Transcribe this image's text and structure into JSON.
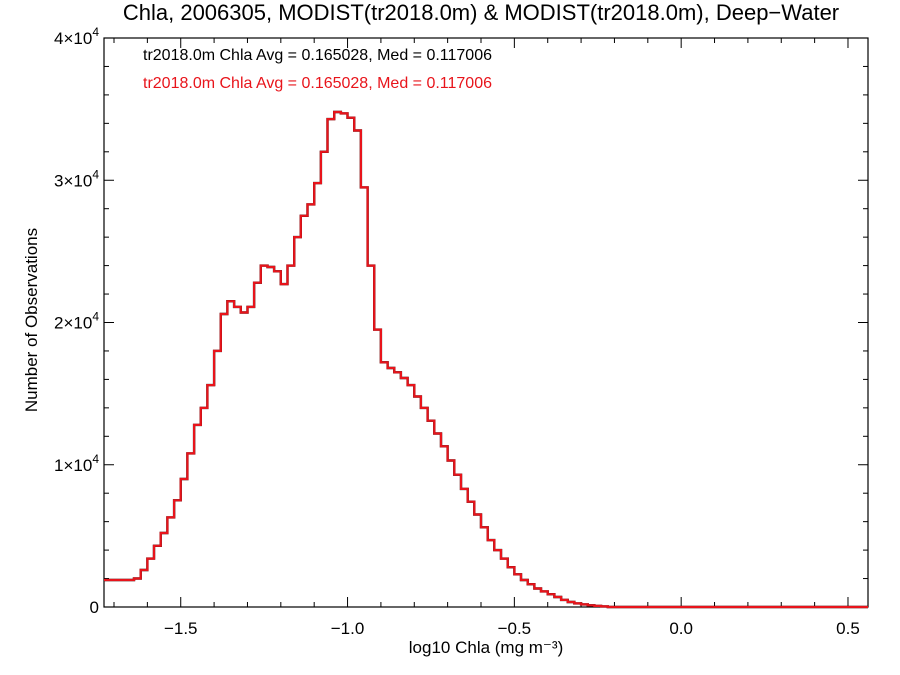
{
  "chart_data": {
    "type": "line",
    "style": "step",
    "title": "Chla, 2006305, MODIST(tr2018.0m) & MODIST(tr2018.0m), Deep−Water",
    "xlabel": "log10 Chla (mg m⁻³)",
    "ylabel": "Number of Observations",
    "xlim": [
      -1.73,
      0.56
    ],
    "ylim": [
      0,
      40000
    ],
    "x_ticks": [
      {
        "value": -1.5,
        "label": "−1.5"
      },
      {
        "value": -1.0,
        "label": "−1.0"
      },
      {
        "value": -0.5,
        "label": "−0.5"
      },
      {
        "value": 0.0,
        "label": "0.0"
      },
      {
        "value": 0.5,
        "label": "0.5"
      }
    ],
    "y_ticks": [
      {
        "value": 0,
        "label": "0"
      },
      {
        "value": 10000,
        "label": "1×10",
        "exp": "4"
      },
      {
        "value": 20000,
        "label": "2×10",
        "exp": "4"
      },
      {
        "value": 30000,
        "label": "3×10",
        "exp": "4"
      },
      {
        "value": 40000,
        "label": "4×10",
        "exp": "4"
      }
    ],
    "annotations": [
      {
        "text": "tr2018.0m Chla Avg = 0.165028, Med = 0.117006",
        "color": "#000000"
      },
      {
        "text": "tr2018.0m Chla Avg = 0.165028, Med = 0.117006",
        "color": "#e8141b"
      }
    ],
    "series": [
      {
        "color_primary": "#e8141b",
        "color_underlay": "#000000",
        "x": [
          -1.73,
          -1.64,
          -1.62,
          -1.6,
          -1.58,
          -1.56,
          -1.54,
          -1.52,
          -1.5,
          -1.48,
          -1.46,
          -1.44,
          -1.42,
          -1.4,
          -1.38,
          -1.36,
          -1.34,
          -1.32,
          -1.3,
          -1.28,
          -1.26,
          -1.24,
          -1.22,
          -1.2,
          -1.18,
          -1.16,
          -1.14,
          -1.12,
          -1.1,
          -1.08,
          -1.06,
          -1.04,
          -1.02,
          -1.0,
          -0.98,
          -0.96,
          -0.94,
          -0.92,
          -0.9,
          -0.88,
          -0.86,
          -0.84,
          -0.82,
          -0.8,
          -0.78,
          -0.76,
          -0.74,
          -0.72,
          -0.7,
          -0.68,
          -0.66,
          -0.64,
          -0.62,
          -0.6,
          -0.58,
          -0.56,
          -0.54,
          -0.52,
          -0.5,
          -0.48,
          -0.46,
          -0.44,
          -0.42,
          -0.4,
          -0.38,
          -0.36,
          -0.34,
          -0.32,
          -0.3,
          -0.28,
          -0.26,
          -0.24,
          -0.22,
          -0.2,
          -0.18,
          -0.16,
          -0.14,
          -0.12,
          -0.1,
          -0.08,
          -0.06,
          -0.04,
          -0.02,
          0.0,
          0.02,
          0.04,
          0.06,
          0.08,
          0.1,
          0.12,
          0.14,
          0.16,
          0.18,
          0.2,
          0.25,
          0.3,
          0.35,
          0.4,
          0.45,
          0.5,
          0.56
        ],
        "values": [
          1900,
          2000,
          2600,
          3400,
          4300,
          5200,
          6300,
          7500,
          9000,
          10800,
          12800,
          14000,
          15600,
          18000,
          20600,
          21500,
          21100,
          20700,
          21100,
          22800,
          24000,
          23900,
          23600,
          22700,
          24000,
          26000,
          27500,
          28300,
          29800,
          32000,
          34300,
          34800,
          34700,
          34400,
          33500,
          29500,
          24000,
          19500,
          17200,
          16800,
          16500,
          16100,
          15600,
          14800,
          14000,
          13100,
          12200,
          11300,
          10300,
          9300,
          8300,
          7400,
          6500,
          5600,
          4700,
          4000,
          3400,
          2800,
          2300,
          1900,
          1600,
          1300,
          1100,
          900,
          700,
          500,
          350,
          250,
          180,
          120,
          80,
          40,
          0,
          0,
          0,
          0,
          0,
          0,
          0,
          0,
          0,
          0,
          0,
          0,
          0,
          0,
          0,
          0,
          0,
          0,
          0,
          0,
          0,
          0,
          0,
          0,
          0,
          0,
          0,
          0,
          0
        ],
        "note_values_are_counts": true
      }
    ]
  }
}
